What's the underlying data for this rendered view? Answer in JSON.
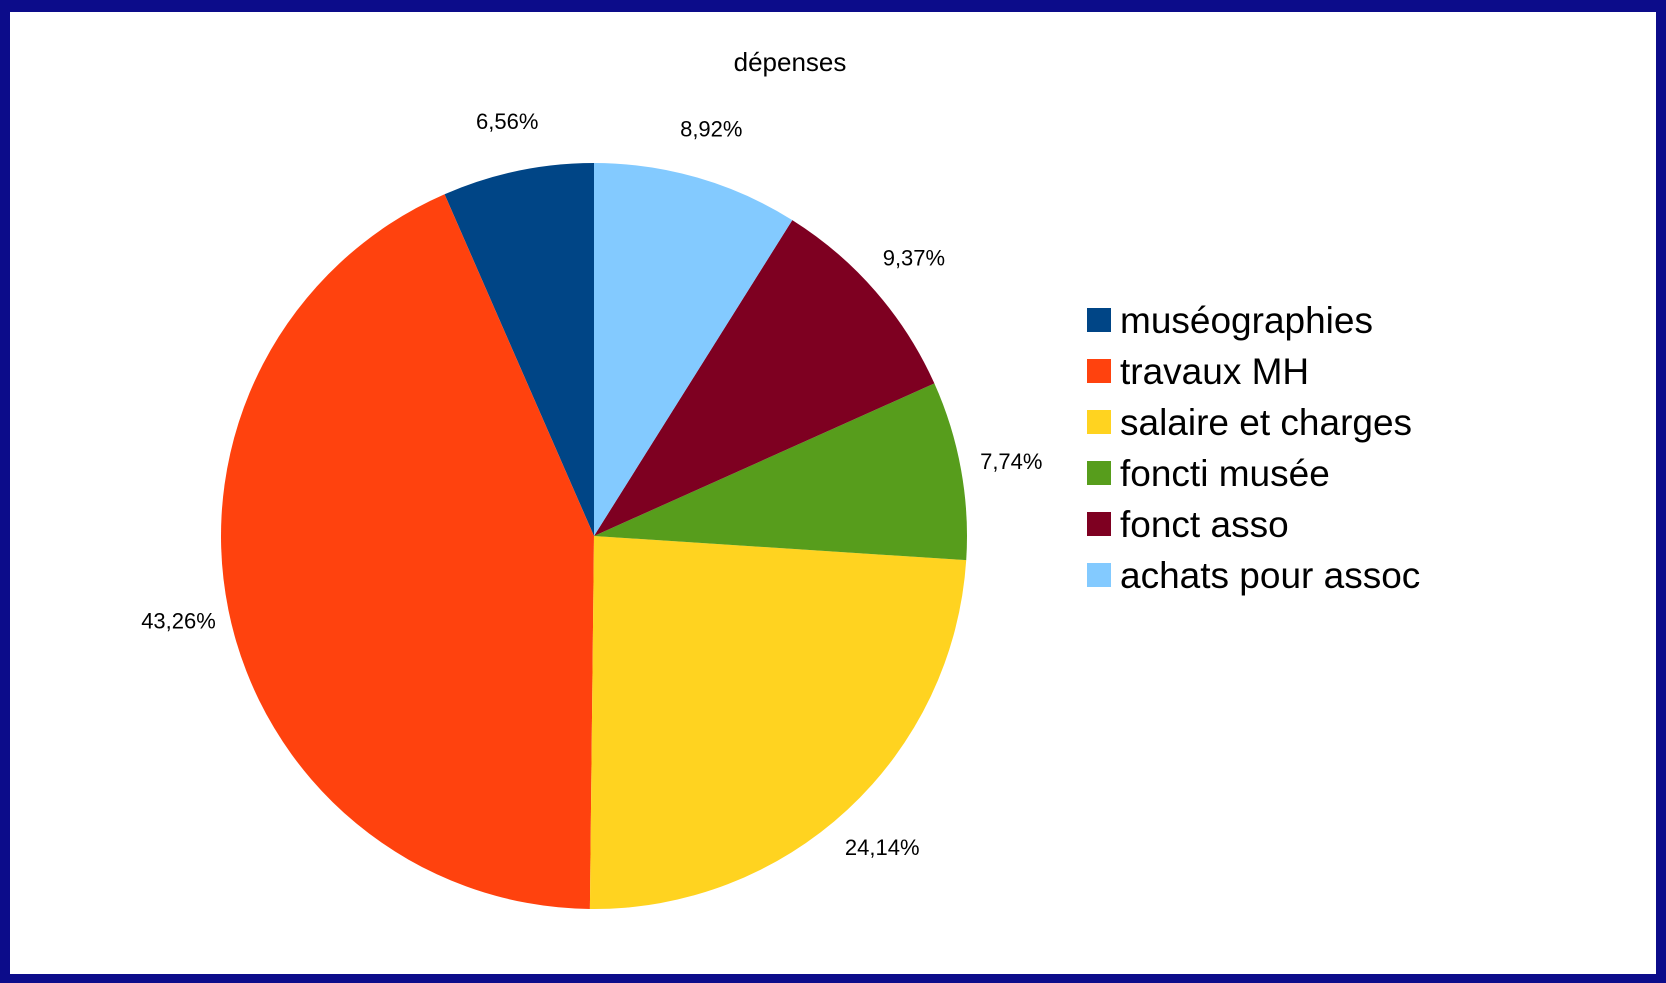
{
  "chart_data": {
    "type": "pie",
    "title": "dépenses",
    "categories": [
      "muséographies",
      "travaux MH",
      "salaire et charges",
      "foncti musée",
      "fonct asso",
      "achats pour assoc"
    ],
    "values": [
      6.56,
      43.26,
      24.14,
      7.74,
      9.37,
      8.92
    ],
    "labels": [
      "6,56%",
      "43,26%",
      "24,14%",
      "7,74%",
      "9,37%",
      "8,92%"
    ],
    "colors": [
      "#004586",
      "#ff420e",
      "#ffd320",
      "#579d1c",
      "#7e0021",
      "#83caff"
    ],
    "start": "12 o'clock",
    "direction": "counter-clockwise",
    "legend_position": "right"
  }
}
